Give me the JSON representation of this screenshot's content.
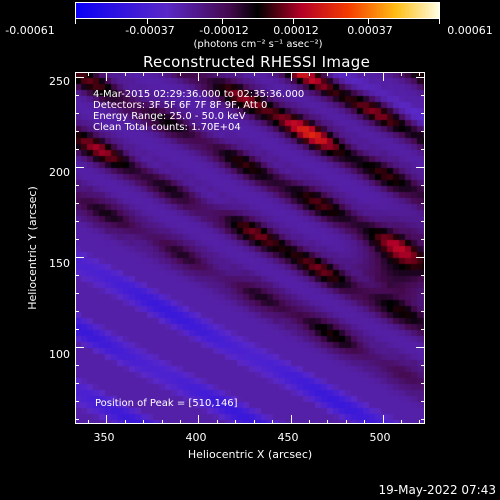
{
  "chart_data": {
    "type": "heatmap",
    "title": "Reconstructed RHESSI Image",
    "xlabel": "Heliocentric X (arcsec)",
    "ylabel": "Heliocentric Y (arcsec)",
    "xlim": [
      333,
      523
    ],
    "ylim": [
      57,
      253
    ],
    "x_ticks": [
      "350",
      "400",
      "450",
      "500"
    ],
    "x_tick_values": [
      350,
      400,
      450,
      500
    ],
    "y_ticks": [
      "100",
      "150",
      "200",
      "250"
    ],
    "y_tick_values": [
      100,
      150,
      200,
      250
    ],
    "colorbar": {
      "min": -0.00061,
      "max": 0.00061,
      "tick_labels": [
        "-0.00061",
        "-0.00037",
        "-0.00012",
        "0.00012",
        "0.00037",
        "0.00061"
      ],
      "tick_values": [
        -0.00061,
        -0.00037,
        -0.00012,
        0.00012,
        0.00037,
        0.00061
      ],
      "unit_label": "(photons cm⁻² s⁻¹ asec⁻²)"
    },
    "annotations": [
      "4-Mar-2015 02:29:36.000 to 02:35:36.000",
      "Detectors: 3F 5F 6F 7F 8F 9F, Att 0",
      "Energy Range: 25.0 - 50.0 keV",
      "Clean    Total counts: 1.70E+04"
    ],
    "peak_label": "Position of Peak = [510,146]",
    "peak": [
      510,
      146
    ],
    "stripes": [
      {
        "c": -20,
        "amp": 0.00042
      },
      {
        "c": 14,
        "amp": 0.0005
      },
      {
        "c": 50,
        "amp": 0.00048
      },
      {
        "c": 86,
        "amp": 0.00061
      },
      {
        "c": 118,
        "amp": 0.00052
      },
      {
        "c": 152,
        "amp": 0.00049
      },
      {
        "c": 188,
        "amp": 0.00045
      }
    ]
  },
  "footer": {
    "timestamp": "19-May-2022 07:43"
  },
  "colors": {
    "background": "#000000",
    "text": "#ffffff"
  }
}
